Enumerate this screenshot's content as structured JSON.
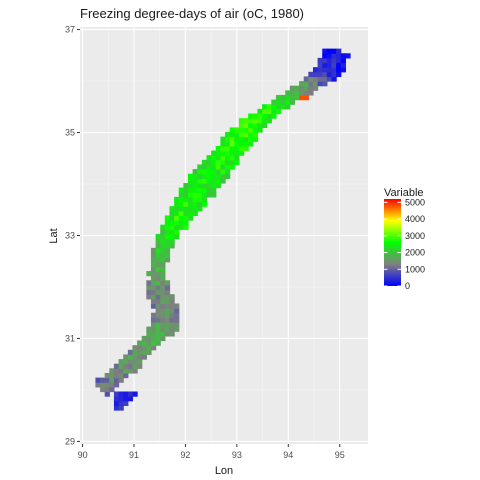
{
  "chart_data": {
    "type": "heatmap",
    "title": "Freezing degree-days of air (oC, 1980)",
    "xlabel": "Lon",
    "ylabel": "Lat",
    "xlim": [
      89.95,
      95.55
    ],
    "ylim": [
      28.95,
      37.05
    ],
    "x_ticks": [
      90,
      91,
      92,
      93,
      94,
      95
    ],
    "y_ticks": [
      29,
      31,
      33,
      35,
      37
    ],
    "grid": true,
    "legend": {
      "title": "Variable",
      "placement": "right",
      "breaks": [
        0,
        1000,
        2000,
        3000,
        4000,
        5000
      ],
      "range": [
        0,
        5200
      ],
      "colors": [
        "#0000ff",
        "#808080",
        "#00ff00",
        "#ffff00",
        "#ff0000"
      ]
    },
    "centerline": [
      {
        "lon": 90.4,
        "lat": 30.05,
        "value": 1200,
        "half_width": 0.17
      },
      {
        "lon": 90.62,
        "lat": 30.25,
        "value": 1400,
        "half_width": 0.18
      },
      {
        "lon": 90.85,
        "lat": 30.45,
        "value": 1600,
        "half_width": 0.18
      },
      {
        "lon": 91.1,
        "lat": 30.7,
        "value": 1700,
        "half_width": 0.17
      },
      {
        "lon": 91.35,
        "lat": 30.95,
        "value": 1800,
        "half_width": 0.16
      },
      {
        "lon": 91.55,
        "lat": 31.25,
        "value": 1650,
        "half_width": 0.26
      },
      {
        "lon": 91.6,
        "lat": 31.55,
        "value": 1550,
        "half_width": 0.2
      },
      {
        "lon": 91.45,
        "lat": 31.85,
        "value": 1500,
        "half_width": 0.22
      },
      {
        "lon": 91.4,
        "lat": 32.15,
        "value": 1700,
        "half_width": 0.18
      },
      {
        "lon": 91.45,
        "lat": 32.5,
        "value": 2000,
        "half_width": 0.17
      },
      {
        "lon": 91.55,
        "lat": 32.85,
        "value": 2300,
        "half_width": 0.18
      },
      {
        "lon": 91.75,
        "lat": 33.2,
        "value": 2700,
        "half_width": 0.22
      },
      {
        "lon": 92.0,
        "lat": 33.6,
        "value": 2600,
        "half_width": 0.28
      },
      {
        "lon": 92.3,
        "lat": 34.0,
        "value": 2500,
        "half_width": 0.3
      },
      {
        "lon": 92.6,
        "lat": 34.35,
        "value": 2600,
        "half_width": 0.28
      },
      {
        "lon": 92.9,
        "lat": 34.75,
        "value": 2800,
        "half_width": 0.25
      },
      {
        "lon": 93.25,
        "lat": 35.1,
        "value": 2900,
        "half_width": 0.2
      },
      {
        "lon": 93.6,
        "lat": 35.4,
        "value": 2700,
        "half_width": 0.16
      },
      {
        "lon": 94.0,
        "lat": 35.65,
        "value": 2200,
        "half_width": 0.14
      },
      {
        "lon": 94.35,
        "lat": 35.85,
        "value": 1600,
        "half_width": 0.16
      },
      {
        "lon": 94.65,
        "lat": 36.1,
        "value": 800,
        "half_width": 0.22
      },
      {
        "lon": 94.85,
        "lat": 36.35,
        "value": 350,
        "half_width": 0.26
      }
    ],
    "low_patch": {
      "lon_range": [
        90.55,
        91.25
      ],
      "lat_range": [
        29.45,
        29.95
      ],
      "value": 400
    },
    "hot_spot": {
      "lon": 94.25,
      "lat": 35.62,
      "value": 4800
    }
  }
}
